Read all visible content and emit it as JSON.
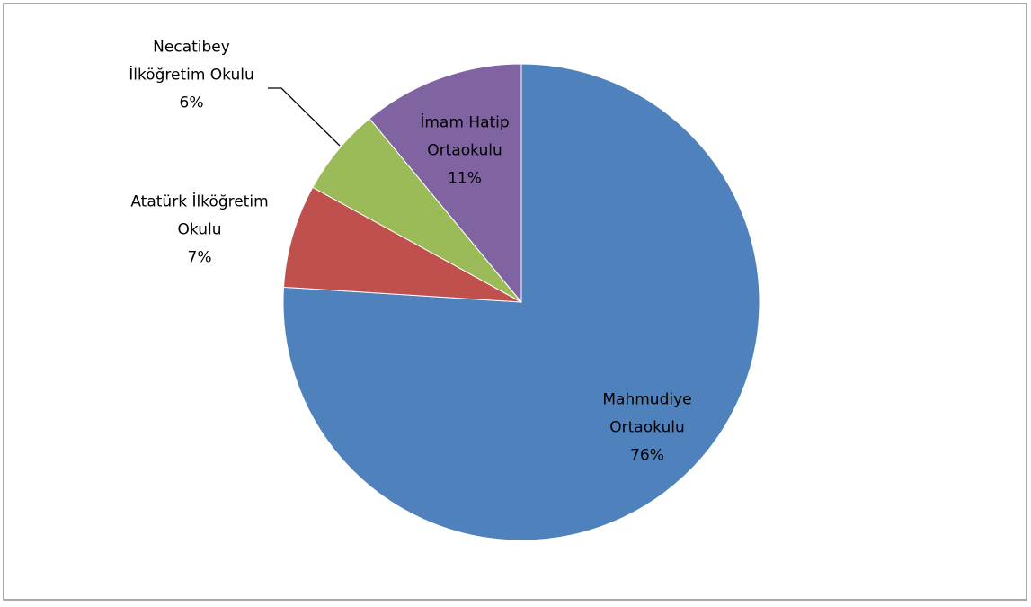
{
  "chart_data": {
    "type": "pie",
    "categories": [
      "Mahmudiye\nOrtaokulu",
      "Atatürk İlköğretim\nOkulu",
      "Necatibey\nİlköğretim Okulu",
      "İmam Hatip\nOrtaokulu"
    ],
    "values": [
      76,
      7,
      6,
      11
    ],
    "value_labels": [
      "76%",
      "7%",
      "6%",
      "11%"
    ],
    "colors": [
      "#4f81bd",
      "#c0504d",
      "#9bbb59",
      "#8064a2"
    ]
  }
}
